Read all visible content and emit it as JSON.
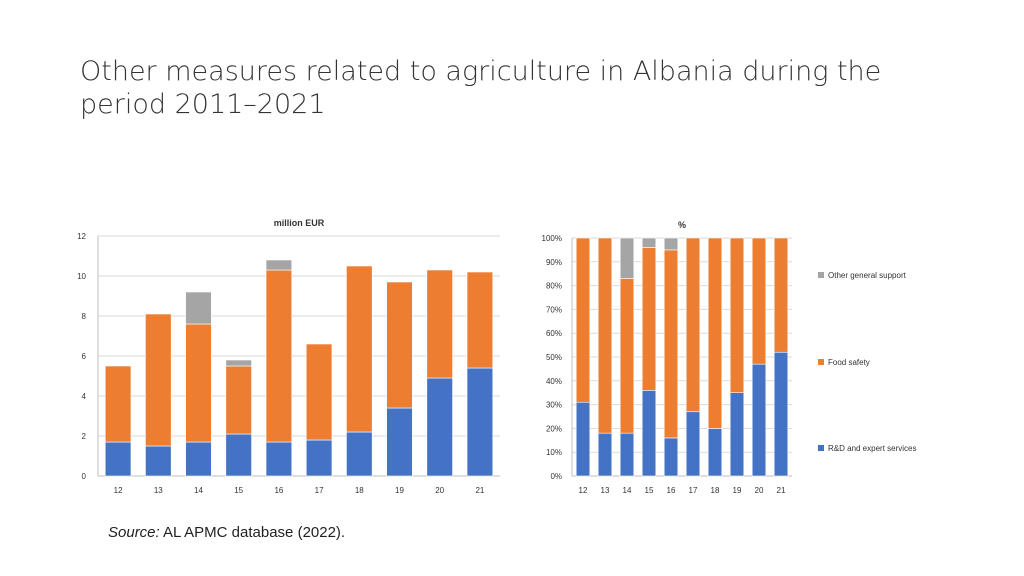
{
  "title": "Other measures related to agriculture in Albania during the period 2011–2021",
  "source": {
    "label": "Source:",
    "text": "AL APMC database (2022)."
  },
  "colors": {
    "rd": "#4472C4",
    "food": "#ED7D31",
    "other": "#A5A5A5",
    "grid": "#d9d9d9",
    "axis": "#bfbfbf"
  },
  "chart_data": [
    {
      "type": "bar",
      "stacked": true,
      "title": "million EUR",
      "categories": [
        "12",
        "13",
        "14",
        "15",
        "16",
        "17",
        "18",
        "19",
        "20",
        "21"
      ],
      "ylim": [
        0,
        12
      ],
      "yticks": [
        "0",
        "2",
        "4",
        "6",
        "8",
        "10",
        "12"
      ],
      "series": [
        {
          "name": "R&D and expert services",
          "values": [
            1.7,
            1.5,
            1.7,
            2.1,
            1.7,
            1.8,
            2.2,
            3.4,
            4.9,
            5.4
          ]
        },
        {
          "name": "Food safety",
          "values": [
            3.8,
            6.6,
            5.9,
            3.4,
            8.6,
            4.8,
            8.3,
            6.3,
            5.4,
            4.8
          ]
        },
        {
          "name": "Other general support",
          "values": [
            0,
            0,
            1.6,
            0.3,
            0.5,
            0,
            0,
            0,
            0,
            0
          ]
        }
      ]
    },
    {
      "type": "bar",
      "stacked": true,
      "title": "%",
      "categories": [
        "12",
        "13",
        "14",
        "15",
        "16",
        "17",
        "18",
        "19",
        "20",
        "21"
      ],
      "ylim": [
        0,
        100
      ],
      "yticks": [
        "0%",
        "10%",
        "20%",
        "30%",
        "40%",
        "50%",
        "60%",
        "70%",
        "80%",
        "90%",
        "100%"
      ],
      "series": [
        {
          "name": "R&D and expert services",
          "values": [
            31,
            18,
            18,
            36,
            16,
            27,
            20,
            35,
            47,
            52
          ]
        },
        {
          "name": "Food safety",
          "values": [
            69,
            82,
            65,
            60,
            79,
            73,
            80,
            65,
            53,
            48
          ]
        },
        {
          "name": "Other general support",
          "values": [
            0,
            0,
            17,
            4,
            5,
            0,
            0,
            0,
            0,
            0
          ]
        }
      ],
      "legend": [
        "Other general support",
        "Food safety",
        "R&D and expert services"
      ]
    }
  ]
}
